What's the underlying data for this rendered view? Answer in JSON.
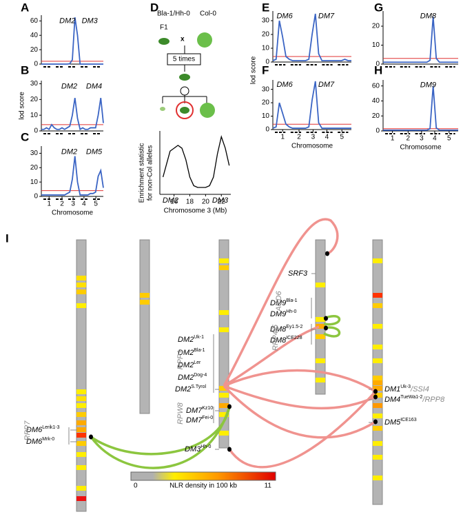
{
  "chart_data": [
    {
      "label": "A",
      "type": "line",
      "color": "#3a64c4",
      "threshold_color": "#e03030",
      "threshold": 4,
      "x": [
        0,
        5,
        10,
        15,
        20,
        25,
        30,
        35,
        40,
        45,
        50,
        55,
        60,
        65,
        70,
        75,
        80,
        85,
        90,
        95,
        100,
        105,
        110,
        115,
        120
      ],
      "values": [
        0,
        0,
        0,
        0,
        0,
        0,
        0,
        0,
        0,
        0,
        0,
        0.5,
        6,
        65,
        40,
        0,
        0,
        0,
        0,
        0,
        0,
        0,
        0,
        0,
        0
      ],
      "xlim": [
        0,
        120
      ],
      "ylim": [
        0,
        68
      ],
      "yticks": [
        0,
        20,
        40,
        60
      ],
      "annotations": [
        "DM2",
        "DM3"
      ]
    },
    {
      "label": "B",
      "type": "line",
      "color": "#3a64c4",
      "threshold_color": "#e03030",
      "threshold": 4,
      "ylabel": "lod score",
      "x": [
        0,
        5,
        10,
        15,
        20,
        25,
        30,
        35,
        40,
        45,
        50,
        55,
        60,
        65,
        70,
        75,
        80,
        85,
        90,
        95,
        100,
        105,
        110,
        115,
        120
      ],
      "values": [
        1,
        1,
        2,
        1,
        4,
        2,
        1,
        1,
        2,
        1,
        2,
        3,
        10,
        21,
        8,
        1,
        2,
        1,
        1,
        2,
        2,
        2,
        10,
        21,
        5
      ],
      "xlim": [
        0,
        120
      ],
      "ylim": [
        0,
        32
      ],
      "yticks": [
        0,
        10,
        20,
        30
      ],
      "annotations": [
        "DM2",
        "DM4"
      ]
    },
    {
      "label": "C",
      "type": "line",
      "color": "#3a64c4",
      "threshold_color": "#e03030",
      "threshold": 4,
      "xlabel": "Chromosome",
      "x": [
        0,
        5,
        10,
        15,
        20,
        25,
        30,
        35,
        40,
        45,
        50,
        55,
        60,
        65,
        70,
        75,
        80,
        85,
        90,
        95,
        100,
        105,
        110,
        115,
        120
      ],
      "values": [
        1,
        1,
        1,
        1,
        1,
        1,
        1,
        1,
        1,
        1,
        2,
        3,
        12,
        28,
        10,
        1,
        1,
        1,
        1,
        2,
        2,
        3,
        14,
        18,
        6
      ],
      "xlim": [
        0,
        120
      ],
      "ylim": [
        0,
        35
      ],
      "yticks": [
        0,
        10,
        20,
        30
      ],
      "annotations": [
        "DM2",
        "DM5"
      ],
      "xticks": [
        {
          "value": 15,
          "label": "1"
        },
        {
          "value": 40,
          "label": "2"
        },
        {
          "value": 61.5,
          "label": "3"
        },
        {
          "value": 82.5,
          "label": "4"
        },
        {
          "value": 105.5,
          "label": "5"
        }
      ]
    },
    {
      "label": "D",
      "type": "enrichment",
      "color": "#000000",
      "xlabel": "Chromosome 3 (Mb)",
      "ylabel": [
        "Enrichment statistic",
        "for non-Col alleles"
      ],
      "x": [
        14.6,
        15,
        15.5,
        16,
        16.5,
        17,
        17.5,
        18,
        18.5,
        19,
        19.5,
        20,
        20.5,
        21,
        21.5,
        22,
        22.5,
        23
      ],
      "values": [
        0.3,
        0.5,
        0.75,
        0.8,
        0.85,
        0.8,
        0.6,
        0.3,
        0.15,
        0.12,
        0.12,
        0.12,
        0.15,
        0.3,
        0.7,
        1.0,
        0.8,
        0.5
      ],
      "xlim": [
        14.2,
        23.2
      ],
      "ylim": [
        0,
        1.1
      ],
      "xticks": [
        16,
        18,
        20,
        22
      ],
      "annotations": [
        "DM2",
        "DM3"
      ]
    },
    {
      "label": "E",
      "type": "line",
      "color": "#3a64c4",
      "threshold_color": "#e03030",
      "threshold": 4,
      "ylabel": "lod score",
      "x": [
        0,
        5,
        10,
        15,
        20,
        25,
        30,
        35,
        40,
        45,
        50,
        55,
        60,
        65,
        70,
        75,
        80,
        85,
        90,
        95,
        100,
        105,
        110,
        115,
        120
      ],
      "values": [
        1,
        2,
        30,
        18,
        4,
        2,
        1,
        1,
        1,
        1,
        1,
        2,
        20,
        35,
        6,
        1,
        1,
        1,
        1,
        1,
        1,
        1,
        2,
        1,
        1
      ],
      "xlim": [
        0,
        120
      ],
      "ylim": [
        0,
        37
      ],
      "yticks": [
        0,
        10,
        20,
        30
      ],
      "annotations": [
        "DM6",
        "DM7"
      ]
    },
    {
      "label": "F",
      "type": "line",
      "color": "#3a64c4",
      "threshold_color": "#e03030",
      "threshold": 4,
      "xlabel": "Chromosome",
      "x": [
        0,
        5,
        10,
        15,
        20,
        25,
        30,
        35,
        40,
        45,
        50,
        55,
        60,
        65,
        70,
        75,
        80,
        85,
        90,
        95,
        100,
        105,
        110,
        115,
        120
      ],
      "values": [
        1,
        2,
        20,
        12,
        4,
        2,
        1,
        1,
        1,
        1,
        1,
        2,
        22,
        36,
        5,
        1,
        1,
        1,
        1,
        1,
        1,
        1,
        1,
        1,
        1
      ],
      "xlim": [
        0,
        120
      ],
      "ylim": [
        0,
        37
      ],
      "yticks": [
        0,
        10,
        20,
        30
      ],
      "annotations": [
        "DM6",
        "DM7"
      ],
      "xticks": [
        {
          "value": 15,
          "label": "1"
        },
        {
          "value": 40,
          "label": "2"
        },
        {
          "value": 61.5,
          "label": "3"
        },
        {
          "value": 82.5,
          "label": "4"
        },
        {
          "value": 105.5,
          "label": "5"
        }
      ]
    },
    {
      "label": "G",
      "type": "line",
      "color": "#3a64c4",
      "threshold_color": "#e03030",
      "threshold": 3,
      "x": [
        0,
        5,
        10,
        15,
        20,
        25,
        30,
        35,
        40,
        45,
        50,
        55,
        60,
        65,
        70,
        75,
        80,
        85,
        90,
        95,
        100,
        105,
        110,
        115,
        120
      ],
      "values": [
        1,
        1,
        1,
        1,
        1,
        1,
        1,
        1,
        1,
        1,
        1,
        1,
        1,
        1,
        1,
        2,
        25,
        3,
        1,
        1,
        1,
        1,
        1,
        1,
        1
      ],
      "xlim": [
        0,
        120
      ],
      "ylim": [
        0,
        28
      ],
      "yticks": [
        0,
        10,
        20
      ],
      "annotations": [
        "DM8"
      ]
    },
    {
      "label": "H",
      "type": "line",
      "color": "#3a64c4",
      "threshold_color": "#e03030",
      "threshold": 3,
      "xlabel": "Chromosome",
      "x": [
        0,
        5,
        10,
        15,
        20,
        25,
        30,
        35,
        40,
        45,
        50,
        55,
        60,
        65,
        70,
        75,
        80,
        85,
        90,
        95,
        100,
        105,
        110,
        115,
        120
      ],
      "values": [
        1,
        1,
        1,
        1,
        1,
        1,
        1,
        1,
        1,
        1,
        1,
        1,
        1,
        1,
        1,
        3,
        60,
        4,
        1,
        1,
        1,
        1,
        1,
        1,
        1
      ],
      "xlim": [
        0,
        120
      ],
      "ylim": [
        0,
        68
      ],
      "yticks": [
        0,
        20,
        40,
        60
      ],
      "annotations": [
        "DM9"
      ],
      "xticks": [
        {
          "value": 15,
          "label": "1"
        },
        {
          "value": 40,
          "label": "2"
        },
        {
          "value": 61.5,
          "label": "3"
        },
        {
          "value": 82.5,
          "label": "4"
        },
        {
          "value": 105.5,
          "label": "5"
        }
      ]
    }
  ],
  "cross": {
    "parent1": "Bla-1/Hh-0",
    "parent2": "Col-0",
    "f1": "F1",
    "sign": "x",
    "generations": "5 times"
  },
  "panel_i": {
    "label": "I",
    "loci": [
      {
        "name": "DM6",
        "sup": "Lerik1-3"
      },
      {
        "name": "DM6",
        "sup": "Mrk-0"
      },
      {
        "name": "DM2",
        "sup": "Uk-1"
      },
      {
        "name": "DM2",
        "sup": "Bla-1"
      },
      {
        "name": "DM2",
        "sup": "Ler"
      },
      {
        "name": "DM2",
        "sup": "Dog-4"
      },
      {
        "name": "DM2",
        "sup": "S.Tyrol"
      },
      {
        "name": "DM7",
        "sup": "Kz10"
      },
      {
        "name": "DM7",
        "sup": "Fei-0"
      },
      {
        "name": "DM3",
        "sup": "Hh-0"
      },
      {
        "name": "SRF3"
      },
      {
        "name": "DM9",
        "sup": "Bla-1"
      },
      {
        "name": "DM9",
        "sup": "Hh-0"
      },
      {
        "name": "DM8",
        "sup": "Ey1.5-2"
      },
      {
        "name": "DM8",
        "sup": "ICE228"
      },
      {
        "name": "DM1",
        "sup": "Uk-3",
        "suffix": "/SSI4"
      },
      {
        "name": "DM4",
        "sup": "TueWa1-2",
        "suffix": "/RPP8"
      },
      {
        "name": "DM5",
        "sup": "ICE163"
      }
    ],
    "clusters": [
      "RPP7",
      "RPP1",
      "RPW8",
      "ACD6",
      "RPP4/5"
    ],
    "colorbar": {
      "min": 0,
      "max": 11,
      "label": "NLR density in 100 kb"
    }
  }
}
